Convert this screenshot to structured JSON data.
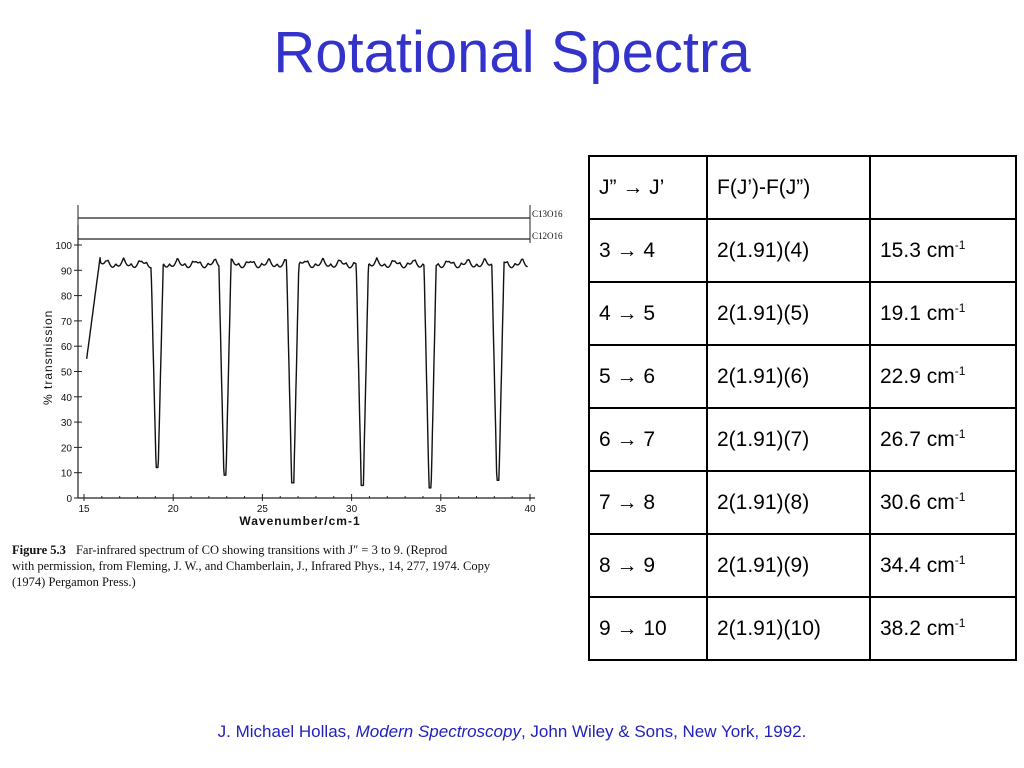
{
  "title": "Rotational Spectra",
  "spectrum": {
    "y_axis_label": "% transmission",
    "x_axis_label": "Wavenumber/cm-1",
    "y_ticks": [
      "100",
      "90",
      "80",
      "70",
      "60",
      "50",
      "40",
      "30",
      "20",
      "10",
      "0"
    ],
    "x_ticks": [
      "15",
      "20",
      "25",
      "30",
      "35",
      "40"
    ],
    "labels": {
      "upper": "C13O16",
      "lower": "C12O16"
    }
  },
  "caption": {
    "figure_label": "Figure 5.3",
    "line1": "Far-infrared spectrum of CO showing transitions with J″ = 3 to 9. (Reprod",
    "line2": "with permission, from Fleming, J. W., and Chamberlain, J., Infrared Phys., 14, 277, 1974. Copy",
    "line3": "(1974) Pergamon Press.)"
  },
  "table": {
    "headers": [
      "J” → J’",
      "F(J’)-F(J”)",
      ""
    ],
    "rows": [
      {
        "transition": "3 → 4",
        "expression": "2(1.91)(4)",
        "value": "15.3 cm",
        "unit_exp": "-1"
      },
      {
        "transition": "4 → 5",
        "expression": "2(1.91)(5)",
        "value": "19.1 cm",
        "unit_exp": "-1"
      },
      {
        "transition": "5 → 6",
        "expression": "2(1.91)(6)",
        "value": "22.9 cm",
        "unit_exp": "-1"
      },
      {
        "transition": "6 → 7",
        "expression": "2(1.91)(7)",
        "value": "26.7 cm",
        "unit_exp": "-1"
      },
      {
        "transition": "7 → 8",
        "expression": "2(1.91)(8)",
        "value": "30.6 cm",
        "unit_exp": "-1"
      },
      {
        "transition": "8 → 9",
        "expression": "2(1.91)(9)",
        "value": "34.4 cm",
        "unit_exp": "-1"
      },
      {
        "transition": "9 → 10",
        "expression": "2(1.91)(10)",
        "value": "38.2 cm",
        "unit_exp": "-1"
      }
    ]
  },
  "citation": {
    "author": "J. Michael Hollas, ",
    "book": "Modern Spectroscopy",
    "rest": ", John Wiley & Sons, New York, 1992."
  }
}
